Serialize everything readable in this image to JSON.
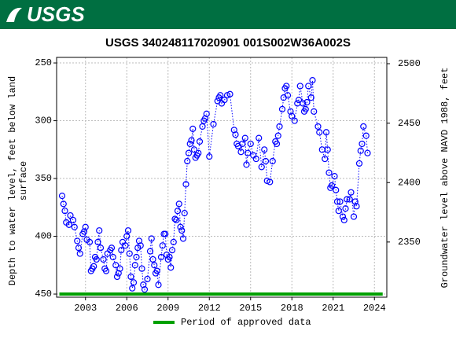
{
  "logo_text": "USGS",
  "chart_data": {
    "type": "line",
    "title": "USGS 340248117020901 001S002W36A002S",
    "ylabel": [
      "Depth to water level, feet below land",
      "surface"
    ],
    "y2label": "Groundwater level above NAVD 1988, feet",
    "xlim": [
      2000.9,
      2024.9
    ],
    "xticks": [
      2003,
      2006,
      2009,
      2012,
      2015,
      2018,
      2021,
      2024
    ],
    "ylim": [
      452.7,
      245.2
    ],
    "yticks": [
      250,
      300,
      350,
      400,
      450
    ],
    "y2lim": [
      2303.6,
      2505.3
    ],
    "y2ticks": [
      2350,
      2400,
      2450,
      2500
    ],
    "grid": true,
    "series": [
      {
        "color": "#0000ff",
        "x": [
          2001.3,
          2001.4,
          2001.5,
          2001.6,
          2001.8,
          2001.9,
          2002.1,
          2002.2,
          2002.4,
          2002.5,
          2002.6,
          2002.8,
          2002.9,
          2003.0,
          2003.1,
          2003.3,
          2003.4,
          2003.5,
          2003.6,
          2003.7,
          2003.8,
          2003.9,
          2004.0,
          2004.1,
          2004.3,
          2004.4,
          2004.5,
          2004.6,
          2004.8,
          2004.9,
          2005.0,
          2005.2,
          2005.3,
          2005.4,
          2005.5,
          2005.6,
          2005.7,
          2005.9,
          2006.0,
          2006.1,
          2006.2,
          2006.3,
          2006.4,
          2006.5,
          2006.6,
          2006.7,
          2006.8,
          2006.9,
          2007.0,
          2007.1,
          2007.2,
          2007.3,
          2007.5,
          2007.7,
          2007.8,
          2007.9,
          2008.0,
          2008.1,
          2008.2,
          2008.3,
          2008.5,
          2008.6,
          2008.7,
          2008.8,
          2008.9,
          2009.0,
          2009.1,
          2009.2,
          2009.3,
          2009.4,
          2009.5,
          2009.6,
          2009.7,
          2009.8,
          2009.9,
          2010.0,
          2010.1,
          2010.2,
          2010.3,
          2010.4,
          2010.5,
          2010.6,
          2010.7,
          2010.8,
          2010.9,
          2011.0,
          2011.1,
          2011.2,
          2011.3,
          2011.5,
          2011.6,
          2011.7,
          2011.8,
          2012.0,
          2012.3,
          2012.6,
          2012.7,
          2012.8,
          2012.9,
          2013.1,
          2013.3,
          2013.5,
          2013.8,
          2013.9,
          2014.0,
          2014.1,
          2014.3,
          2014.4,
          2014.6,
          2014.7,
          2014.8,
          2015.0,
          2015.2,
          2015.4,
          2015.6,
          2015.8,
          2016.0,
          2016.1,
          2016.2,
          2016.4,
          2016.6,
          2016.8,
          2016.9,
          2017.0,
          2017.1,
          2017.3,
          2017.4,
          2017.5,
          2017.6,
          2017.7,
          2017.9,
          2018.0,
          2018.2,
          2018.4,
          2018.5,
          2018.6,
          2018.8,
          2018.9,
          2019.0,
          2019.1,
          2019.2,
          2019.4,
          2019.5,
          2019.6,
          2019.9,
          2020.0,
          2020.2,
          2020.4,
          2020.5,
          2020.6,
          2020.7,
          2020.8,
          2020.9,
          2021.1,
          2021.2,
          2021.3,
          2021.4,
          2021.5,
          2021.7,
          2021.8,
          2021.9,
          2022.0,
          2022.2,
          2022.3,
          2022.5,
          2022.6,
          2022.7,
          2022.9,
          2023.0,
          2023.1,
          2023.2,
          2023.4,
          2023.5
        ],
        "values": [
          365,
          372,
          378,
          388,
          390,
          382,
          386,
          392,
          404,
          410,
          415,
          398,
          396,
          392,
          403,
          405,
          430,
          428,
          426,
          418,
          420,
          405,
          395,
          410,
          420,
          428,
          430,
          415,
          412,
          410,
          418,
          425,
          435,
          432,
          428,
          412,
          405,
          408,
          400,
          395,
          415,
          435,
          445,
          440,
          425,
          418,
          410,
          404,
          408,
          428,
          442,
          446,
          437,
          413,
          402,
          420,
          425,
          432,
          430,
          442,
          418,
          408,
          398,
          398,
          416,
          420,
          418,
          427,
          412,
          405,
          385,
          386,
          378,
          372,
          392,
          395,
          402,
          380,
          355,
          335,
          328,
          320,
          317,
          307,
          325,
          332,
          330,
          328,
          318,
          305,
          300,
          298,
          294,
          331,
          303,
          283,
          280,
          278,
          285,
          282,
          278,
          277,
          308,
          312,
          320,
          322,
          327,
          320,
          315,
          338,
          328,
          320,
          330,
          333,
          315,
          340,
          325,
          335,
          352,
          353,
          335,
          318,
          320,
          313,
          305,
          290,
          280,
          272,
          270,
          278,
          292,
          296,
          300,
          285,
          282,
          270,
          285,
          292,
          290,
          284,
          270,
          280,
          265,
          292,
          305,
          310,
          325,
          333,
          310,
          325,
          345,
          358,
          356,
          348,
          360,
          370,
          378,
          370,
          383,
          386,
          376,
          368,
          368,
          362,
          383,
          370,
          374,
          337,
          326,
          320,
          305,
          313,
          328
        ]
      }
    ],
    "approved_period": {
      "name": "Period of approved data",
      "color": "#00a000",
      "x": [
        2001.1,
        2024.6
      ]
    }
  }
}
